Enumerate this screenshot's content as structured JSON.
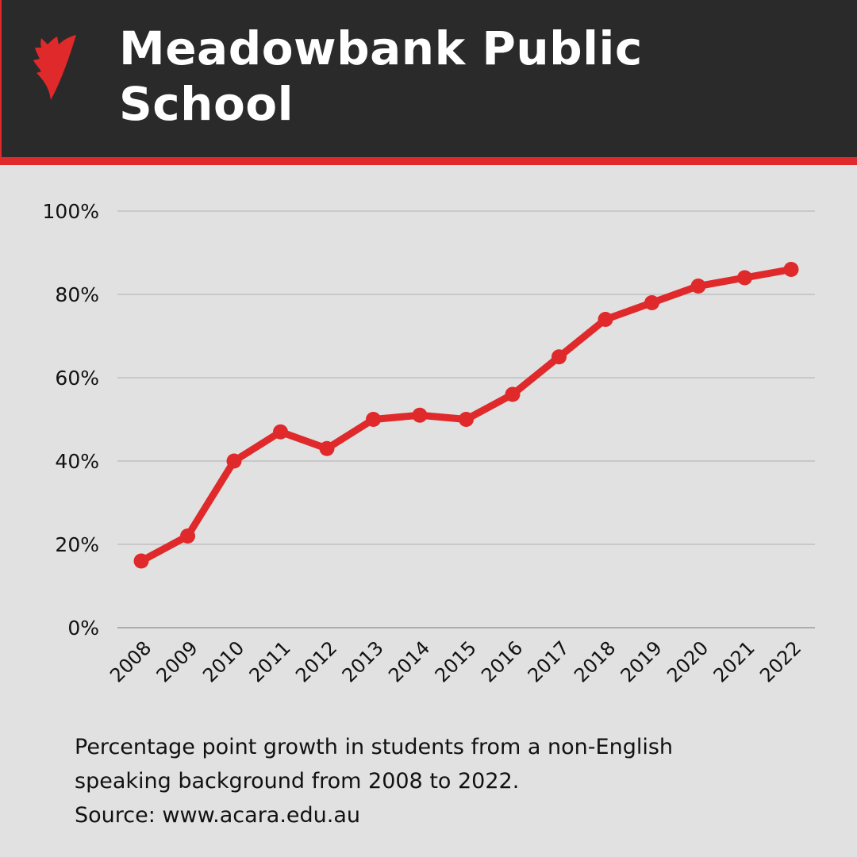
{
  "header": {
    "title_line1": "Meadowbank Public",
    "title_line2": "School",
    "logo_icon": "sbs-logo-icon",
    "accent_color": "#e0292b",
    "background_color": "#2b2a2a"
  },
  "chart_data": {
    "type": "line",
    "title": "Meadowbank Public School",
    "xlabel": "",
    "ylabel": "",
    "categories": [
      "2008",
      "2009",
      "2010",
      "2011",
      "2012",
      "2013",
      "2014",
      "2015",
      "2016",
      "2017",
      "2018",
      "2019",
      "2020",
      "2021",
      "2022"
    ],
    "series": [
      {
        "name": "Students from a non-English speaking background (%)",
        "color": "#e0292b",
        "values": [
          16,
          22,
          40,
          47,
          43,
          50,
          51,
          50,
          56,
          65,
          74,
          78,
          82,
          84,
          86
        ]
      }
    ],
    "ylim": [
      0,
      100
    ],
    "yticks": [
      0,
      20,
      40,
      60,
      80,
      100
    ],
    "ytick_labels": [
      "0%",
      "20%",
      "40%",
      "60%",
      "80%",
      "100%"
    ],
    "grid": true,
    "legend": "none"
  },
  "footer": {
    "line1": "Percentage point growth in students from a non-English",
    "line2": "speaking background from 2008 to 2022.",
    "line3": "Source: www.acara.edu.au"
  }
}
